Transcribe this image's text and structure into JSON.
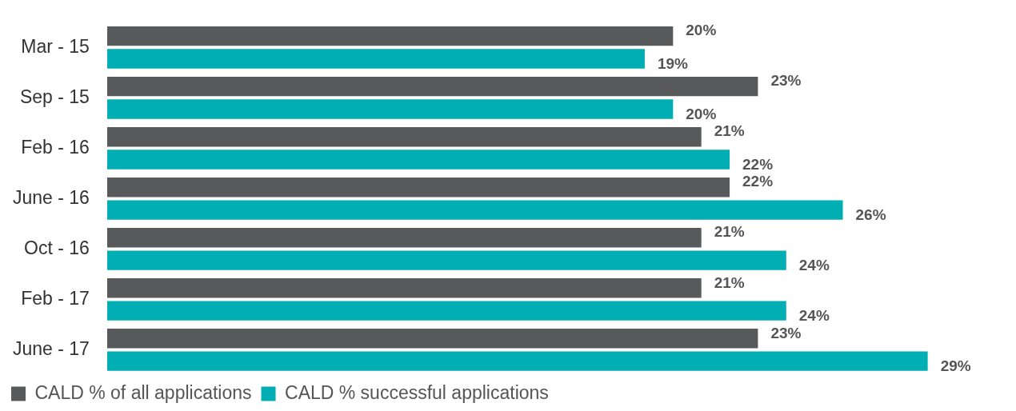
{
  "chart_data": {
    "type": "bar",
    "orientation": "horizontal",
    "categories": [
      "Mar - 15",
      "Sep - 15",
      "Feb - 16",
      "June - 16",
      "Oct - 16",
      "Feb - 17",
      "June - 17"
    ],
    "series": [
      {
        "name": "CALD % of all applications",
        "color": "#58595b",
        "values": [
          20,
          23,
          21,
          22,
          21,
          21,
          23
        ],
        "value_labels": [
          "20%",
          "23%",
          "21%",
          "22%",
          "21%",
          "21%",
          "23%"
        ]
      },
      {
        "name": "CALD % successful applications",
        "color": "#00aeb3",
        "values": [
          19,
          20,
          22,
          26,
          24,
          24,
          29
        ],
        "value_labels": [
          "19%",
          "20%",
          "22%",
          "26%",
          "24%",
          "24%",
          "29%"
        ]
      }
    ],
    "tick_labels": "y",
    "legend": "bottom left"
  }
}
